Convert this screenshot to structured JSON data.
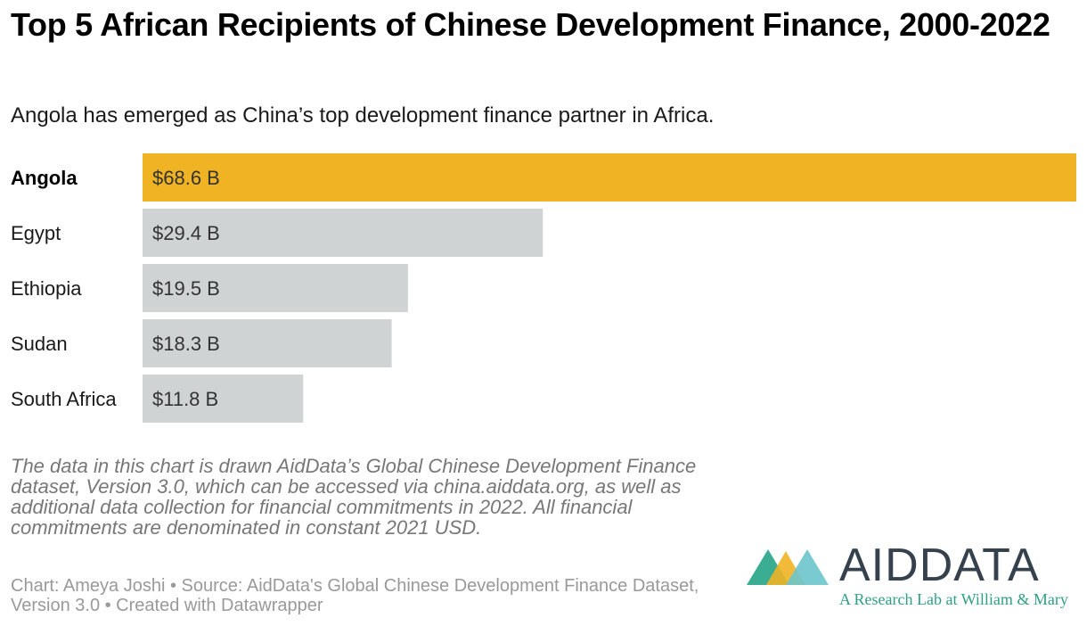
{
  "header": {
    "title": "Top 5 African Recipients of Chinese Development Finance, 2000-2022",
    "subtitle": "Angola has emerged as China’s top development finance partner in Africa."
  },
  "chart_data": {
    "type": "bar",
    "orientation": "horizontal",
    "categories": [
      "Angola",
      "Egypt",
      "Ethiopia",
      "Sudan",
      "South Africa"
    ],
    "values": [
      68.6,
      29.4,
      19.5,
      18.3,
      11.8
    ],
    "value_labels": [
      "$68.6 B",
      "$29.4 B",
      "$19.5 B",
      "$18.3 B",
      "$11.8 B"
    ],
    "highlight": "Angola",
    "xlim": [
      0,
      68.6
    ],
    "grid": false,
    "colors": {
      "highlight": "#f0b323",
      "default": "#cfd3d4"
    }
  },
  "footer": {
    "note": "The data in this chart is drawn AidData’s Global Chinese Development Finance dataset, Version 3.0, which can be accessed via china.aiddata.org, as well as additional data collection for financial commitments in 2022. All financial commitments are denominated in constant 2021 USD.",
    "credits": "Chart: Ameya Joshi • Source: AidData's Global Chinese Development Finance Dataset, Version 3.0 • Created with Datawrapper"
  },
  "logo": {
    "word_bold": "AID",
    "word_light": "DATA",
    "tagline": "A Research Lab at William & Mary",
    "colors": {
      "green": "#2fa98c",
      "yellow": "#f0b323",
      "teal": "#6cc5cc",
      "text": "#35424e"
    }
  }
}
